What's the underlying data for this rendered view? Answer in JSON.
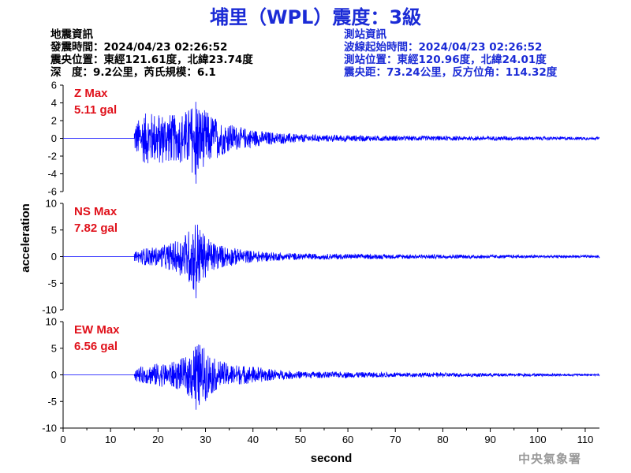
{
  "header": {
    "title": "埔里（WPL）震度：3級"
  },
  "earthquake_info": {
    "heading": "地震資訊",
    "time": "發震時間：2024/04/23 02:26:52",
    "location": "震央位置：東經121.61度，北緯23.74度",
    "depth_mag": "深　度：9.2公里，芮氏規模：6.1"
  },
  "station_info": {
    "heading": "測站資訊",
    "onset": "波線起始時間：2024/04/23 02:26:52",
    "location": "測站位置：東經120.96度，北緯24.01度",
    "distance": "震央距：73.24公里，反方位角：114.32度"
  },
  "footer": {
    "agency": "中央氣象署"
  },
  "colors": {
    "title": "#1b2bd6",
    "trace": "#0000ff",
    "max_label": "#e0111b"
  },
  "chart_data": {
    "type": "line",
    "xlabel": "second",
    "ylabel": "acceleration",
    "x_ticks": [
      0,
      10,
      20,
      30,
      40,
      50,
      60,
      70,
      80,
      90,
      100,
      110
    ],
    "xlim": [
      0,
      113
    ],
    "onset_seconds": 15,
    "panels": [
      {
        "name": "Z",
        "max_title": "Z Max",
        "max_value": "5.11 gal",
        "peak": 5.11,
        "ylim": [
          -6,
          6
        ],
        "y_ticks": [
          6,
          4,
          2,
          0,
          -2,
          -4,
          -6
        ],
        "envelope": [
          [
            15,
            1.6
          ],
          [
            17,
            2.8
          ],
          [
            20,
            3.0
          ],
          [
            24,
            2.6
          ],
          [
            27,
            3.6
          ],
          [
            28,
            5.1
          ],
          [
            29,
            3.4
          ],
          [
            30,
            3.2
          ],
          [
            33,
            2.0
          ],
          [
            37,
            1.3
          ],
          [
            42,
            0.8
          ],
          [
            50,
            0.45
          ],
          [
            60,
            0.35
          ],
          [
            75,
            0.28
          ],
          [
            95,
            0.22
          ],
          [
            113,
            0.15
          ]
        ]
      },
      {
        "name": "NS",
        "max_title": "NS Max",
        "max_value": "7.82 gal",
        "peak": 7.82,
        "ylim": [
          -10,
          10
        ],
        "y_ticks": [
          10,
          5,
          0,
          -5,
          -10
        ],
        "envelope": [
          [
            15,
            0.8
          ],
          [
            17,
            1.6
          ],
          [
            20,
            1.8
          ],
          [
            24,
            3.0
          ],
          [
            27,
            5.5
          ],
          [
            28,
            7.8
          ],
          [
            29,
            5.0
          ],
          [
            31,
            3.0
          ],
          [
            34,
            2.0
          ],
          [
            38,
            1.3
          ],
          [
            44,
            0.8
          ],
          [
            52,
            0.55
          ],
          [
            65,
            0.45
          ],
          [
            80,
            0.4
          ],
          [
            95,
            0.3
          ],
          [
            113,
            0.25
          ]
        ]
      },
      {
        "name": "EW",
        "max_title": "EW Max",
        "max_value": "6.56 gal",
        "peak": 6.56,
        "ylim": [
          -10,
          10
        ],
        "y_ticks": [
          10,
          5,
          0,
          -5,
          -10
        ],
        "envelope": [
          [
            15,
            1.2
          ],
          [
            17,
            1.6
          ],
          [
            20,
            2.2
          ],
          [
            23,
            2.4
          ],
          [
            26,
            3.5
          ],
          [
            28,
            6.5
          ],
          [
            30,
            5.0
          ],
          [
            32,
            3.0
          ],
          [
            35,
            2.0
          ],
          [
            40,
            1.6
          ],
          [
            45,
            0.9
          ],
          [
            52,
            0.6
          ],
          [
            65,
            0.5
          ],
          [
            80,
            0.4
          ],
          [
            95,
            0.3
          ],
          [
            113,
            0.2
          ]
        ]
      }
    ]
  }
}
